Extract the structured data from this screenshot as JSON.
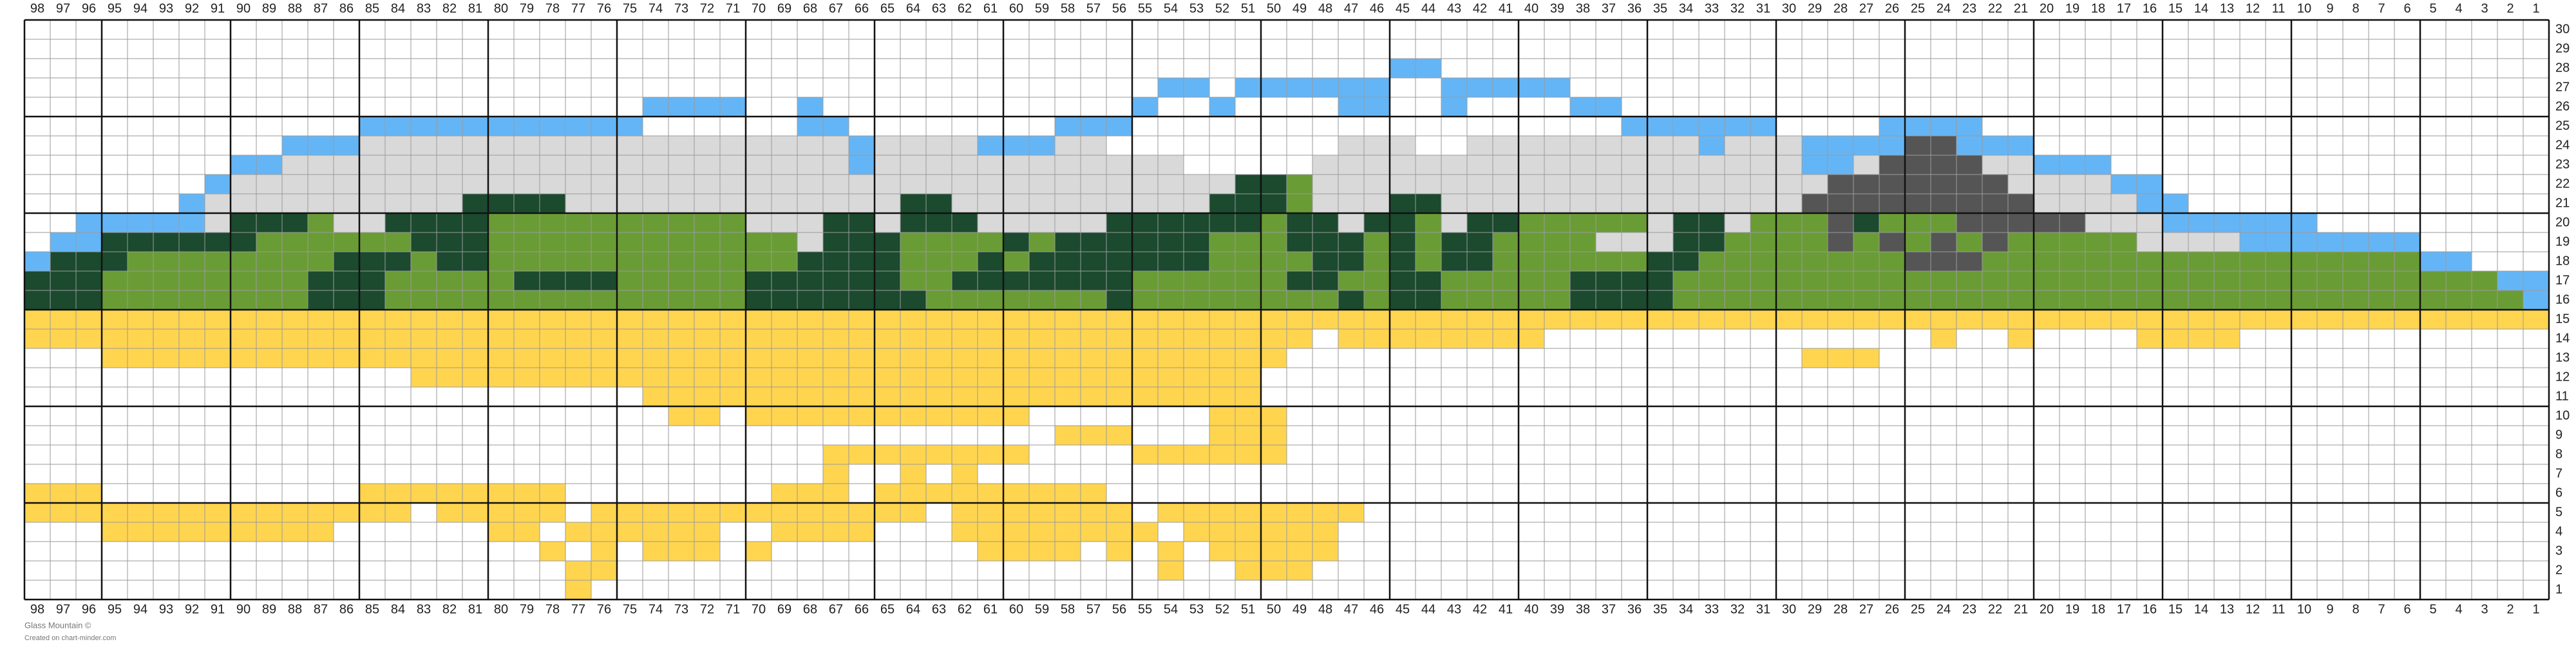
{
  "title": "Glass Mountain ©",
  "credit": "Created on chart-minder.com",
  "column_numbers": [
    98,
    97,
    96,
    95,
    94,
    93,
    92,
    91,
    90,
    89,
    88,
    87,
    86,
    85,
    84,
    83,
    82,
    81,
    80,
    79,
    78,
    77,
    76,
    75,
    74,
    73,
    72,
    71,
    70,
    69,
    68,
    67,
    66,
    65,
    64,
    63,
    62,
    61,
    60,
    59,
    58,
    57,
    56,
    55,
    54,
    53,
    52,
    51,
    50,
    49,
    48,
    47,
    46,
    45,
    44,
    43,
    42,
    41,
    40,
    39,
    38,
    37,
    36,
    35,
    34,
    33,
    32,
    31,
    30,
    29,
    28,
    27,
    26,
    25,
    24,
    23,
    22,
    21,
    20,
    19,
    18,
    17,
    16,
    15,
    14,
    13,
    12,
    11,
    10,
    9,
    8,
    7,
    6,
    5,
    4,
    3,
    2,
    1
  ],
  "row_numbers": [
    30,
    29,
    28,
    27,
    26,
    25,
    24,
    23,
    22,
    21,
    20,
    19,
    18,
    17,
    16,
    15,
    14,
    13,
    12,
    11,
    10,
    9,
    8,
    7,
    6,
    5,
    4,
    3,
    2,
    1
  ],
  "palette": {
    "B": "#64b5f6",
    "G": "#d9d9d9",
    "D": "#1b4a2e",
    "M": "#6a9c35",
    "K": "#555555",
    "Y": "#ffd54f"
  },
  "grid": [
    [
      "...",
      ".....",
      ".....",
      ".....",
      ".....",
      ".....",
      ".....",
      ".....",
      ".....",
      ".....",
      ".....",
      ".....",
      ".....",
      ".....",
      ".....",
      ".....",
      ".....",
      ".....",
      ".....",
      "....."
    ],
    [
      "...",
      ".....",
      ".....",
      ".....",
      ".....",
      ".....",
      ".....",
      ".....",
      ".....",
      ".....",
      ".....",
      ".....",
      ".....",
      ".....",
      ".....",
      ".....",
      ".....",
      ".....",
      ".....",
      "....."
    ],
    [
      "...",
      ".....",
      ".....",
      ".....",
      ".....",
      ".....",
      ".....",
      ".....",
      ".....",
      ".....",
      ".....",
      "BB...",
      ".....",
      ".....",
      ".....",
      ".....",
      ".....",
      ".....",
      ".....",
      "....."
    ],
    [
      "...",
      ".....",
      ".....",
      ".....",
      ".....",
      ".....",
      ".....",
      ".....",
      ".....",
      ".BB.B",
      "BBBBB",
      "..BBB",
      "BB...",
      ".....",
      ".....",
      ".....",
      ".....",
      ".....",
      ".....",
      "....."
    ],
    [
      "...",
      ".....",
      ".....",
      ".....",
      ".....",
      ".BBBB",
      "..B..",
      ".....",
      ".....",
      "B..B.",
      "...BB",
      "..B..",
      "..BB.",
      ".....",
      ".....",
      ".....",
      ".....",
      ".....",
      ".....",
      "....."
    ],
    [
      "...",
      ".....",
      ".....",
      "BBBBB",
      "BBBBB",
      "B....",
      "..BB.",
      ".....",
      "..BBB",
      ".....",
      ".....",
      ".....",
      "....B",
      "BBBBB",
      "....B",
      "BBB..",
      ".....",
      ".....",
      ".....",
      "....."
    ],
    [
      "...",
      ".....",
      "..BBB",
      "GGGGG",
      "GGGGG",
      "GGGGG",
      "GGGGB",
      "GGGGB",
      "BBGG.",
      ".....",
      "...GG",
      "G..GG",
      "GGGGG",
      "GGBGG",
      "GBBBB",
      "KKBBB",
      ".....",
      ".....",
      ".....",
      "....."
    ],
    [
      "...",
      ".....",
      "BBGGG",
      "GGGGG",
      "GGGGG",
      "GGGGG",
      "GGGGB",
      "GGGGG",
      "GGGGG",
      "GG...",
      "..GGG",
      "GGGGG",
      "GGGGG",
      "GGGGG",
      "GBBGK",
      "KKKGG",
      "BBB..",
      ".....",
      ".....",
      "....."
    ],
    [
      "...",
      "....B",
      "GGGGG",
      "GGGGG",
      "GGGGG",
      "GGGGG",
      "GGGGG",
      "GGGGG",
      "GGGGG",
      "GGGGD",
      "DMGGG",
      "GGGGG",
      "GGGGG",
      "GGGGG",
      "GGKKK",
      "KKKKG",
      "GGGBB",
      ".....",
      ".....",
      "....."
    ],
    [
      "...",
      "...BG",
      "GGGGG",
      "GGGGD",
      "DDDGG",
      "GGGGG",
      "GGGGG",
      "GDDGG",
      "GGGGG",
      "GGGDD",
      "DMGGG",
      "DDGGG",
      "GGGGG",
      "GGGGG",
      "GKKKK",
      "KKKKK",
      "GGGGB",
      "B....",
      ".....",
      "....."
    ],
    [
      "..B",
      "BBBBG",
      "DDDMG",
      "GDDDD",
      "MMMMM",
      "MMMMM",
      "GGGDD",
      "GDDDG",
      "GGGGD",
      "DDDDD",
      "MDDGD",
      "DMGDD",
      "MMMMM",
      "GDDGM",
      "MMKDM",
      "MMKKK",
      "KKGGG",
      "BBBBB",
      "B....",
      "....."
    ],
    [
      ".BB",
      "DDDDD",
      "DMMMM",
      "MMDDD",
      "MMMMM",
      "MMMMM",
      "MMGDD",
      "DMMMM",
      "DMDDD",
      "DDDMM",
      "MDDDM",
      "DMDDM",
      "MMMGG",
      "GDDMM",
      "MMKMK",
      "MKMKM",
      "MMMMG",
      "GGGBB",
      "BBBBB",
      "....."
    ],
    [
      "BDD",
      "DMMMM",
      "MMMMD",
      "DDMDD",
      "MMMMM",
      "MMMMM",
      "MMDDD",
      "DMMMD",
      "MDDDD",
      "DDDMM",
      "MMDDM",
      "DMDDM",
      "MMMMM",
      "DDMMM",
      "MMMMM",
      "KKKMM",
      "MMMMM",
      "MMMMM",
      "MMMMM",
      "BB..."
    ],
    [
      "DDD",
      "MMMMM",
      "MMMDD",
      "DMMMM",
      "MDDDD",
      "MMMMM",
      "DDDDD",
      "DMMDD",
      "DDDDD",
      "MMMMM",
      "MDDMM",
      "DDMMM",
      "MMDDD",
      "DMMMM",
      "MMMMM",
      "MMMMM",
      "MMMMM",
      "MMMMM",
      "MMMMM",
      "MMMBB"
    ],
    [
      "DDD",
      "MMMMM",
      "MMMDD",
      "DMMMM",
      "MMMMM",
      "MMMMM",
      "DDDDD",
      "DDMMM",
      "MMMMD",
      "MMMMM",
      "MMMDM",
      "DDMMM",
      "MMDDD",
      "DMMMM",
      "MMMMM",
      "MMMMM",
      "MMMMM",
      "MMMMM",
      "MMMMM",
      "MMMMB"
    ],
    [
      "YYY",
      "YYYYY",
      "YYYYY",
      "YYYYY",
      "YYYYY",
      "YYYYY",
      "YYYYY",
      "YYYYY",
      "YYYYY",
      "YYYYY",
      "YYYYY",
      "YYYYY",
      "YYYYY",
      "YYYYY",
      "YYYYY",
      "YYYYY",
      "YYYYY",
      "YYYYY",
      "YYYYY",
      "YYYYY"
    ],
    [
      "YYY",
      "YYYYY",
      "YYYYY",
      "YYYYY",
      "YYYYY",
      "YYYYY",
      "YYYYY",
      "YYYYY",
      "YYYYY",
      "YYYYY",
      "YY.YY",
      "YYYYY",
      "Y....",
      ".....",
      ".....",
      ".Y..Y",
      "....Y",
      "YYY..",
      ".....",
      "....."
    ],
    [
      "...",
      "YYYYY",
      "YYYYY",
      "YYYYY",
      "YYYYY",
      "YYYYY",
      "YYYYY",
      "YYYYY",
      "YYYYY",
      "YYYYY",
      "Y....",
      ".....",
      ".....",
      ".....",
      ".YYY.",
      ".....",
      ".....",
      ".....",
      ".....",
      "....."
    ],
    [
      "...",
      ".....",
      ".....",
      "..YYY",
      "YYYYY",
      "YYYYY",
      "YYYYY",
      "YYYYY",
      "YYYYY",
      "YYYYY",
      ".....",
      ".....",
      ".....",
      ".....",
      ".....",
      ".....",
      ".....",
      ".....",
      ".....",
      "....."
    ],
    [
      "...",
      ".....",
      ".....",
      ".....",
      ".....",
      ".YYYY",
      "YYYYY",
      "YYYYY",
      "YYYYY",
      "YYYYY",
      ".....",
      ".....",
      ".....",
      ".....",
      ".....",
      ".....",
      ".....",
      ".....",
      ".....",
      "....."
    ],
    [
      "...",
      ".....",
      ".....",
      ".....",
      ".....",
      "..YY.",
      "YYYYY",
      "YYYYY",
      "Y....",
      "...YY",
      "Y....",
      ".....",
      ".....",
      ".....",
      ".....",
      ".....",
      ".....",
      ".....",
      ".....",
      "....."
    ],
    [
      "...",
      ".....",
      ".....",
      ".....",
      ".....",
      ".....",
      ".....",
      ".....",
      "..YYY",
      "...YY",
      "Y....",
      ".....",
      ".....",
      ".....",
      ".....",
      ".....",
      ".....",
      ".....",
      ".....",
      "....."
    ],
    [
      "...",
      ".....",
      ".....",
      ".....",
      ".....",
      ".....",
      "...YY",
      "YYYYY",
      "Y....",
      "YYYYY",
      "Y....",
      ".....",
      ".....",
      ".....",
      ".....",
      ".....",
      ".....",
      ".....",
      ".....",
      "....."
    ],
    [
      "...",
      ".....",
      ".....",
      ".....",
      ".....",
      ".....",
      "...Y.",
      ".Y.Y.",
      ".....",
      ".....",
      ".....",
      ".....",
      ".....",
      ".....",
      ".....",
      ".....",
      ".....",
      ".....",
      ".....",
      "....."
    ],
    [
      "YYY",
      ".....",
      ".....",
      "YYYYY",
      "YYY..",
      ".....",
      ".YYY.",
      "YYYYY",
      "YYYY.",
      ".....",
      ".....",
      ".....",
      ".....",
      ".....",
      ".....",
      ".....",
      ".....",
      ".....",
      ".....",
      "....."
    ],
    [
      "YYY",
      "YYYYY",
      "YYYYY",
      "YY.YY",
      "YYY.Y",
      "YYYYY",
      "YYYYY",
      "YY.YY",
      "YYYYY",
      ".YYYY",
      "YYYY.",
      ".....",
      ".....",
      ".....",
      ".....",
      ".....",
      ".....",
      ".....",
      ".....",
      "....."
    ],
    [
      "...",
      "YYYYY",
      "YYYY.",
      ".....",
      "YY.YY",
      "YYYY.",
      ".YYYY",
      "...YY",
      "YYYYY",
      "Y.YYY",
      "YYY..",
      ".....",
      ".....",
      ".....",
      ".....",
      ".....",
      ".....",
      ".....",
      ".....",
      "....."
    ],
    [
      "...",
      ".....",
      ".....",
      ".....",
      "..Y.Y",
      ".YYY.",
      "Y....",
      "....Y",
      "YYY.Y",
      ".Y.YY",
      "YYY..",
      ".....",
      ".....",
      ".....",
      ".....",
      ".....",
      ".....",
      ".....",
      ".....",
      "....."
    ],
    [
      "...",
      ".....",
      ".....",
      ".....",
      "...YY",
      ".....",
      ".....",
      ".....",
      ".....",
      ".Y..Y",
      "YY...",
      ".....",
      ".....",
      ".....",
      ".....",
      ".....",
      ".....",
      ".....",
      ".....",
      "....."
    ],
    [
      "...",
      ".....",
      ".....",
      ".....",
      "...Y.",
      ".....",
      ".....",
      ".....",
      ".....",
      ".....",
      ".....",
      ".....",
      ".....",
      ".....",
      ".....",
      ".....",
      ".....",
      ".....",
      ".....",
      "....."
    ]
  ]
}
